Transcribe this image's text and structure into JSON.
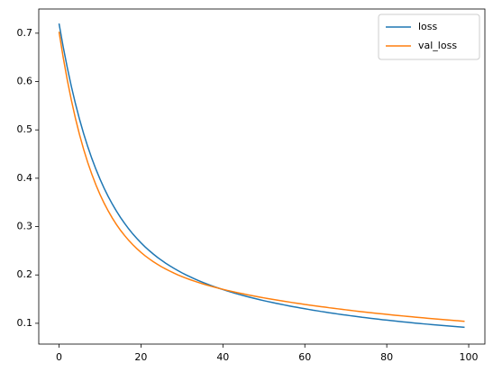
{
  "chart_data": {
    "type": "line",
    "x": [
      0,
      1,
      2,
      3,
      4,
      5,
      6,
      7,
      8,
      9,
      10,
      11,
      12,
      13,
      14,
      15,
      16,
      17,
      18,
      19,
      20,
      21,
      22,
      23,
      24,
      25,
      26,
      27,
      28,
      29,
      30,
      31,
      32,
      33,
      34,
      35,
      36,
      37,
      38,
      39,
      40,
      41,
      42,
      43,
      44,
      45,
      46,
      47,
      48,
      49,
      50,
      51,
      52,
      53,
      54,
      55,
      56,
      57,
      58,
      59,
      60,
      61,
      62,
      63,
      64,
      65,
      66,
      67,
      68,
      69,
      70,
      71,
      72,
      73,
      74,
      75,
      76,
      77,
      78,
      79,
      80,
      81,
      82,
      83,
      84,
      85,
      86,
      87,
      88,
      89,
      90,
      91,
      92,
      93,
      94,
      95,
      96,
      97,
      98,
      99
    ],
    "series": [
      {
        "name": "loss",
        "color": "#1f77b4",
        "values": [
          0.72,
          0.6724,
          0.6293,
          0.5901,
          0.5544,
          0.522,
          0.4925,
          0.4656,
          0.4411,
          0.4187,
          0.3982,
          0.3794,
          0.3623,
          0.3466,
          0.3322,
          0.3189,
          0.3067,
          0.2954,
          0.2849,
          0.2754,
          0.2665,
          0.2581,
          0.2505,
          0.2433,
          0.2366,
          0.2304,
          0.2245,
          0.219,
          0.2139,
          0.2091,
          0.2044,
          0.2001,
          0.1961,
          0.1922,
          0.1885,
          0.185,
          0.1817,
          0.1784,
          0.1754,
          0.1725,
          0.1698,
          0.167,
          0.1645,
          0.1619,
          0.1596,
          0.1573,
          0.1551,
          0.1529,
          0.1508,
          0.1488,
          0.1468,
          0.1449,
          0.1431,
          0.1413,
          0.1396,
          0.1379,
          0.1362,
          0.1346,
          0.1331,
          0.1316,
          0.1301,
          0.1286,
          0.1271,
          0.1258,
          0.1244,
          0.1232,
          0.1218,
          0.1206,
          0.1193,
          0.1181,
          0.117,
          0.1158,
          0.1147,
          0.1136,
          0.1124,
          0.1114,
          0.1104,
          0.1094,
          0.1084,
          0.1074,
          0.1065,
          0.1056,
          0.1047,
          0.1038,
          0.1029,
          0.1021,
          0.1012,
          0.1004,
          0.0996,
          0.0988,
          0.0981,
          0.0973,
          0.0966,
          0.0958,
          0.0951,
          0.0944,
          0.0937,
          0.0931,
          0.0924,
          0.0918
        ]
      },
      {
        "name": "val_loss",
        "color": "#ff7f0e",
        "values": [
          0.703,
          0.6506,
          0.6037,
          0.5618,
          0.524,
          0.4903,
          0.46,
          0.4327,
          0.4083,
          0.3863,
          0.3664,
          0.3485,
          0.3324,
          0.3177,
          0.3044,
          0.2924,
          0.2816,
          0.2716,
          0.2626,
          0.2543,
          0.2466,
          0.2397,
          0.2334,
          0.2275,
          0.2221,
          0.217,
          0.2124,
          0.2081,
          0.204,
          0.2002,
          0.1967,
          0.1934,
          0.1902,
          0.1873,
          0.1845,
          0.1818,
          0.1793,
          0.1768,
          0.1746,
          0.1724,
          0.1703,
          0.1682,
          0.1663,
          0.1643,
          0.1625,
          0.1608,
          0.159,
          0.1574,
          0.1557,
          0.1541,
          0.1526,
          0.1511,
          0.1497,
          0.1483,
          0.1468,
          0.1455,
          0.1442,
          0.1428,
          0.1415,
          0.1403,
          0.139,
          0.1379,
          0.1366,
          0.1355,
          0.1344,
          0.1333,
          0.1321,
          0.1311,
          0.13,
          0.1289,
          0.1279,
          0.1269,
          0.1258,
          0.1248,
          0.1239,
          0.1229,
          0.122,
          0.1211,
          0.1202,
          0.1193,
          0.1184,
          0.1176,
          0.1167,
          0.1159,
          0.1151,
          0.1143,
          0.1135,
          0.1127,
          0.1119,
          0.1112,
          0.1104,
          0.1097,
          0.1089,
          0.1082,
          0.1075,
          0.1068,
          0.1061,
          0.1055,
          0.1048,
          0.1041
        ]
      }
    ],
    "xlim": [
      -4.95,
      103.95
    ],
    "xticks": [
      0,
      20,
      40,
      60,
      80,
      100
    ],
    "ylim": [
      0.057,
      0.75
    ],
    "yticks": [
      0.1,
      0.2,
      0.3,
      0.4,
      0.5,
      0.6,
      0.7
    ],
    "grid": false,
    "legend": "upper-right"
  }
}
